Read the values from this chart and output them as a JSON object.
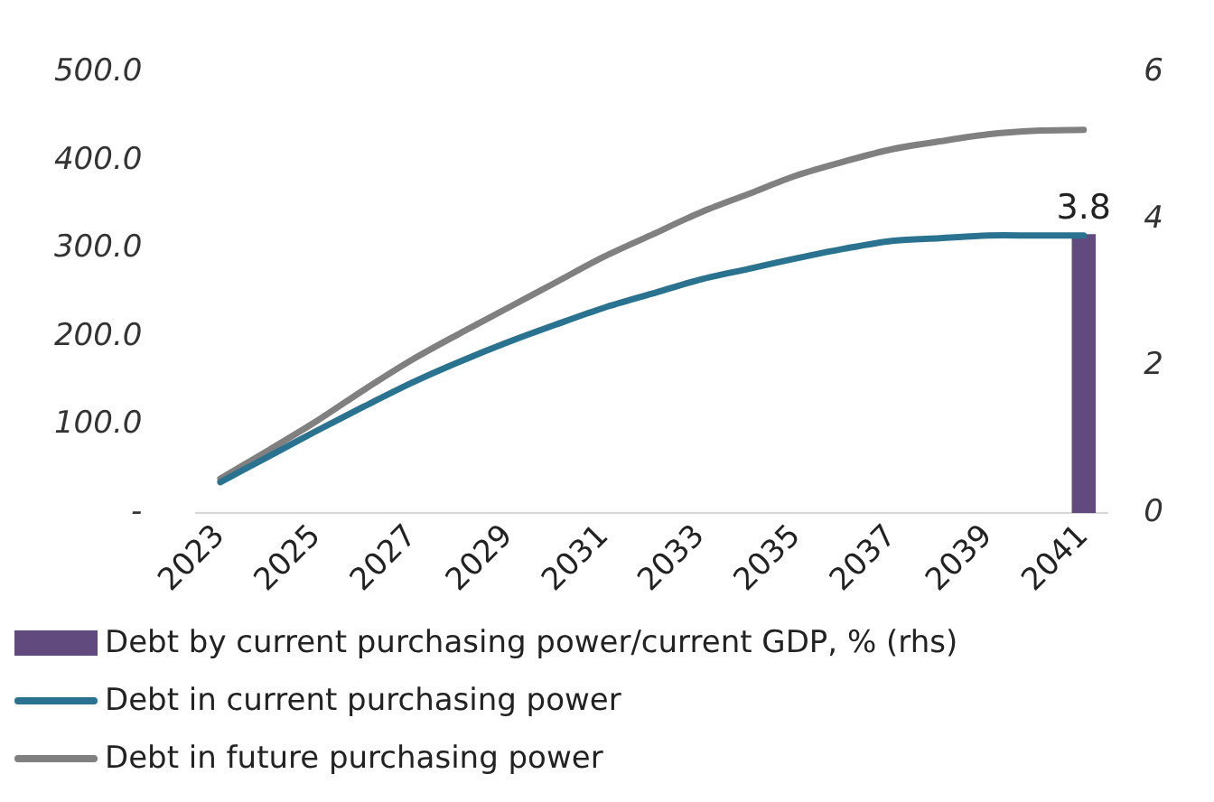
{
  "chart_data": {
    "type": "line",
    "categories": [
      "2023",
      null,
      "2025",
      null,
      "2027",
      null,
      "2029",
      null,
      "2031",
      null,
      "2033",
      null,
      "2035",
      null,
      "2037",
      null,
      "2039",
      null,
      "2041"
    ],
    "series": [
      {
        "name": "Debt by current purchasing power/current GDP, % (rhs)",
        "type": "bar",
        "axis": "y2",
        "color": "#614a7e",
        "values": [
          null,
          null,
          null,
          null,
          null,
          null,
          null,
          null,
          null,
          null,
          null,
          null,
          null,
          null,
          null,
          null,
          null,
          null,
          3.8
        ],
        "value_labels": [
          null,
          null,
          null,
          null,
          null,
          null,
          null,
          null,
          null,
          null,
          null,
          null,
          null,
          null,
          null,
          null,
          null,
          null,
          "3.8"
        ]
      },
      {
        "name": "Debt in current purchasing power",
        "color": "#2a7390",
        "values": [
          35,
          64,
          93,
          121,
          148,
          172,
          194,
          214,
          233,
          249,
          265,
          277,
          289,
          300,
          309,
          312,
          315,
          315,
          315
        ]
      },
      {
        "name": "Debt in future purchasing power",
        "color": "#808080",
        "values": [
          39,
          71,
          104,
          140,
          174,
          204,
          233,
          262,
          291,
          316,
          341,
          362,
          383,
          399,
          413,
          422,
          430,
          434,
          435
        ]
      }
    ],
    "ylim": [
      0,
      500
    ],
    "yticks": [
      {
        "value": 0,
        "label": "-"
      },
      {
        "value": 100,
        "label": "100.0"
      },
      {
        "value": 200,
        "label": "200.0"
      },
      {
        "value": 300,
        "label": "300.0"
      },
      {
        "value": 400,
        "label": "400.0"
      },
      {
        "value": 500,
        "label": "500.0"
      }
    ],
    "y2lim": [
      0,
      6
    ],
    "y2ticks": [
      0,
      2,
      4,
      6
    ],
    "grid": false,
    "legend": "bottom",
    "marker": "none",
    "line_style": "solid"
  }
}
